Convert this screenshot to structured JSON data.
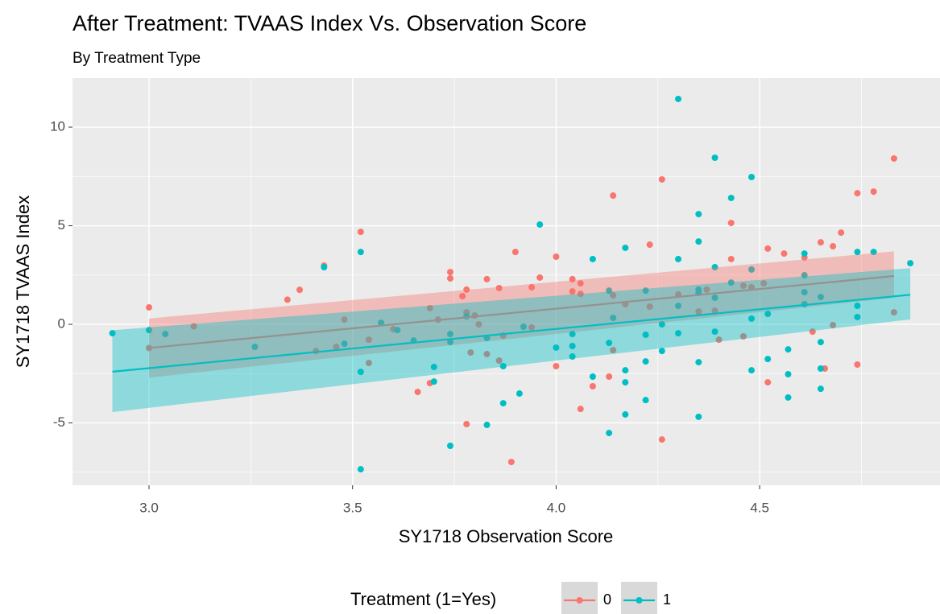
{
  "chart_data": {
    "type": "scatter",
    "title": "After Treatment: TVAAS Index Vs. Observation Score",
    "subtitle": "By Treatment Type",
    "x_label": "SY1718 Observation Score",
    "y_label": "SY1718 TVAAS Index",
    "legend_title": "Treatment (1=Yes)",
    "legend_position": "bottom",
    "grid": true,
    "xlim": [
      2.812,
      4.943
    ],
    "ylim": [
      -8.16,
      12.49
    ],
    "xticks": [
      {
        "value": 3,
        "label": "3.0"
      },
      3.5,
      {
        "value": 4,
        "label": "4.0"
      },
      4.5
    ],
    "yticks": [
      -5,
      0,
      5,
      10
    ],
    "series": [
      {
        "name": "0",
        "color": "#f8766d",
        "x": [
          3.0,
          3.0,
          3.11,
          3.34,
          3.37,
          3.43,
          3.41,
          3.48,
          3.46,
          3.52,
          3.54,
          3.54,
          3.6,
          3.69,
          3.69,
          3.66,
          3.74,
          3.74,
          3.71,
          3.77,
          3.78,
          3.78,
          3.78,
          3.79,
          3.8,
          3.81,
          3.83,
          3.83,
          3.86,
          3.86,
          3.87,
          3.89,
          3.9,
          3.94,
          3.94,
          3.96,
          4.0,
          4.0,
          4.04,
          4.04,
          4.06,
          4.06,
          4.06,
          4.09,
          4.13,
          4.14,
          4.14,
          4.14,
          4.17,
          4.23,
          4.23,
          4.26,
          4.26,
          4.3,
          4.35,
          4.37,
          4.39,
          4.4,
          4.43,
          4.43,
          4.46,
          4.46,
          4.48,
          4.51,
          4.52,
          4.52,
          4.56,
          4.61,
          4.63,
          4.65,
          4.66,
          4.68,
          4.68,
          4.7,
          4.74,
          4.74,
          4.78,
          4.83,
          4.83
        ],
        "y": [
          0.86,
          -1.2,
          -0.1,
          1.25,
          1.75,
          2.98,
          -1.35,
          0.24,
          -1.14,
          4.69,
          -0.78,
          -1.96,
          -0.24,
          0.82,
          -2.98,
          -3.43,
          2.65,
          2.33,
          0.24,
          1.43,
          1.76,
          0.61,
          -5.06,
          -1.43,
          0.45,
          0,
          2.29,
          -1.51,
          1.84,
          -1.84,
          -0.57,
          -6.98,
          3.67,
          1.88,
          -0.16,
          2.37,
          3.43,
          -2.12,
          2.29,
          1.67,
          2.08,
          1.55,
          -4.29,
          -3.14,
          -2.65,
          6.53,
          -1.31,
          1.47,
          1.02,
          4.04,
          0.9,
          7.35,
          -5.84,
          1.51,
          0.65,
          1.76,
          0.69,
          -0.78,
          5.14,
          3.31,
          1.96,
          -0.61,
          1.88,
          2.08,
          3.84,
          -2.94,
          3.59,
          3.39,
          -0.37,
          4.16,
          -2.24,
          3.96,
          -0.04,
          4.65,
          6.65,
          -2.04,
          6.73,
          8.41,
          0.61
        ],
        "fit": {
          "x": [
            3.0,
            4.83
          ],
          "y": [
            -1.2,
            2.45
          ],
          "lower": [
            -2.7,
            1.35
          ],
          "upper": [
            0.3,
            3.7
          ]
        }
      },
      {
        "name": "1",
        "color": "#00bfc4",
        "x": [
          2.91,
          3.0,
          3.04,
          3.26,
          3.43,
          3.48,
          3.52,
          3.52,
          3.52,
          3.57,
          3.61,
          3.65,
          3.7,
          3.7,
          3.74,
          3.74,
          3.74,
          3.78,
          3.83,
          3.83,
          3.87,
          3.87,
          3.91,
          3.92,
          3.96,
          4.0,
          4.04,
          4.04,
          4.04,
          4.09,
          4.09,
          4.13,
          4.13,
          4.13,
          4.14,
          4.17,
          4.17,
          4.17,
          4.17,
          4.22,
          4.22,
          4.22,
          4.22,
          4.26,
          4.26,
          4.3,
          4.3,
          4.3,
          4.3,
          4.35,
          4.35,
          4.35,
          4.35,
          4.35,
          4.35,
          4.39,
          4.39,
          4.39,
          4.39,
          4.43,
          4.43,
          4.48,
          4.48,
          4.48,
          4.48,
          4.52,
          4.52,
          4.57,
          4.57,
          4.57,
          4.61,
          4.61,
          4.61,
          4.61,
          4.65,
          4.65,
          4.65,
          4.65,
          4.74,
          4.74,
          4.74,
          4.78,
          4.87
        ],
        "y": [
          -0.45,
          -0.29,
          -0.49,
          -1.14,
          2.9,
          -0.98,
          3.67,
          -7.35,
          -2.41,
          0.08,
          -0.29,
          -0.82,
          -2.16,
          -2.9,
          -6.16,
          -0.49,
          -0.9,
          0.41,
          -5.1,
          -0.69,
          -2.12,
          -4.0,
          -3.51,
          -0.12,
          5.06,
          -1.18,
          -0.49,
          -1.1,
          -1.63,
          3.31,
          -2.65,
          1.71,
          -0.94,
          -5.51,
          0.33,
          3.88,
          -2.33,
          -2.94,
          -4.57,
          1.71,
          -0.53,
          -1.88,
          -3.84,
          0,
          -1.35,
          11.43,
          3.31,
          0.94,
          -0.45,
          5.59,
          4.2,
          1.76,
          1.59,
          -1.92,
          -4.69,
          8.45,
          2.9,
          1.35,
          -0.37,
          6.41,
          2.12,
          7.47,
          2.78,
          0.29,
          -2.33,
          0.53,
          -1.76,
          -1.27,
          -2.53,
          -3.71,
          3.59,
          2.49,
          1.63,
          1.02,
          1.39,
          -0.9,
          -2.24,
          -3.27,
          3.67,
          0.94,
          0.37,
          3.67,
          3.1
        ],
        "fit": {
          "x": [
            2.91,
            4.87
          ],
          "y": [
            -2.4,
            1.5
          ],
          "lower": [
            -4.45,
            0.25
          ],
          "upper": [
            -0.3,
            2.85
          ]
        }
      }
    ]
  }
}
